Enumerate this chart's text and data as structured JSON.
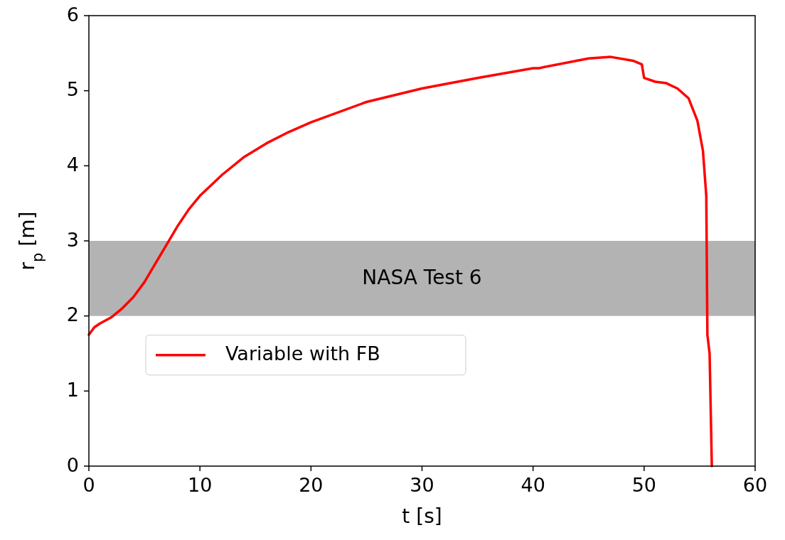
{
  "chart_data": {
    "type": "line",
    "xlabel": "t [s]",
    "ylabel": "r$_{p}$ [m]",
    "xlim": [
      0,
      60
    ],
    "ylim": [
      0,
      6
    ],
    "xticks": [
      0,
      10,
      20,
      30,
      40,
      50,
      60
    ],
    "yticks": [
      0,
      1,
      2,
      3,
      4,
      5,
      6
    ],
    "grid": false,
    "legend": "left",
    "line_style": "solid",
    "marker": "none",
    "bands": [
      {
        "axis": "y",
        "from": 2,
        "to": 3,
        "label": "NASA Test 6",
        "color": "#b3b3b3"
      }
    ],
    "series": [
      {
        "name": "Variable with FB",
        "color": "#ff0000",
        "x": [
          0,
          0.5,
          1,
          2,
          3,
          4,
          5,
          6,
          7,
          8,
          9,
          10,
          12,
          14,
          16,
          18,
          20,
          25,
          30,
          35,
          40,
          40.5,
          45,
          47,
          49,
          49.8,
          50,
          51,
          52,
          53,
          54,
          54.8,
          55.3,
          55.6,
          55.7,
          55.9,
          56.1
        ],
        "values": [
          1.75,
          1.85,
          1.9,
          1.98,
          2.1,
          2.25,
          2.45,
          2.7,
          2.95,
          3.2,
          3.42,
          3.6,
          3.88,
          4.12,
          4.3,
          4.45,
          4.58,
          4.85,
          5.03,
          5.17,
          5.3,
          5.3,
          5.43,
          5.45,
          5.4,
          5.35,
          5.17,
          5.12,
          5.1,
          5.03,
          4.9,
          4.6,
          4.2,
          3.6,
          1.75,
          1.5,
          0
        ]
      }
    ]
  }
}
